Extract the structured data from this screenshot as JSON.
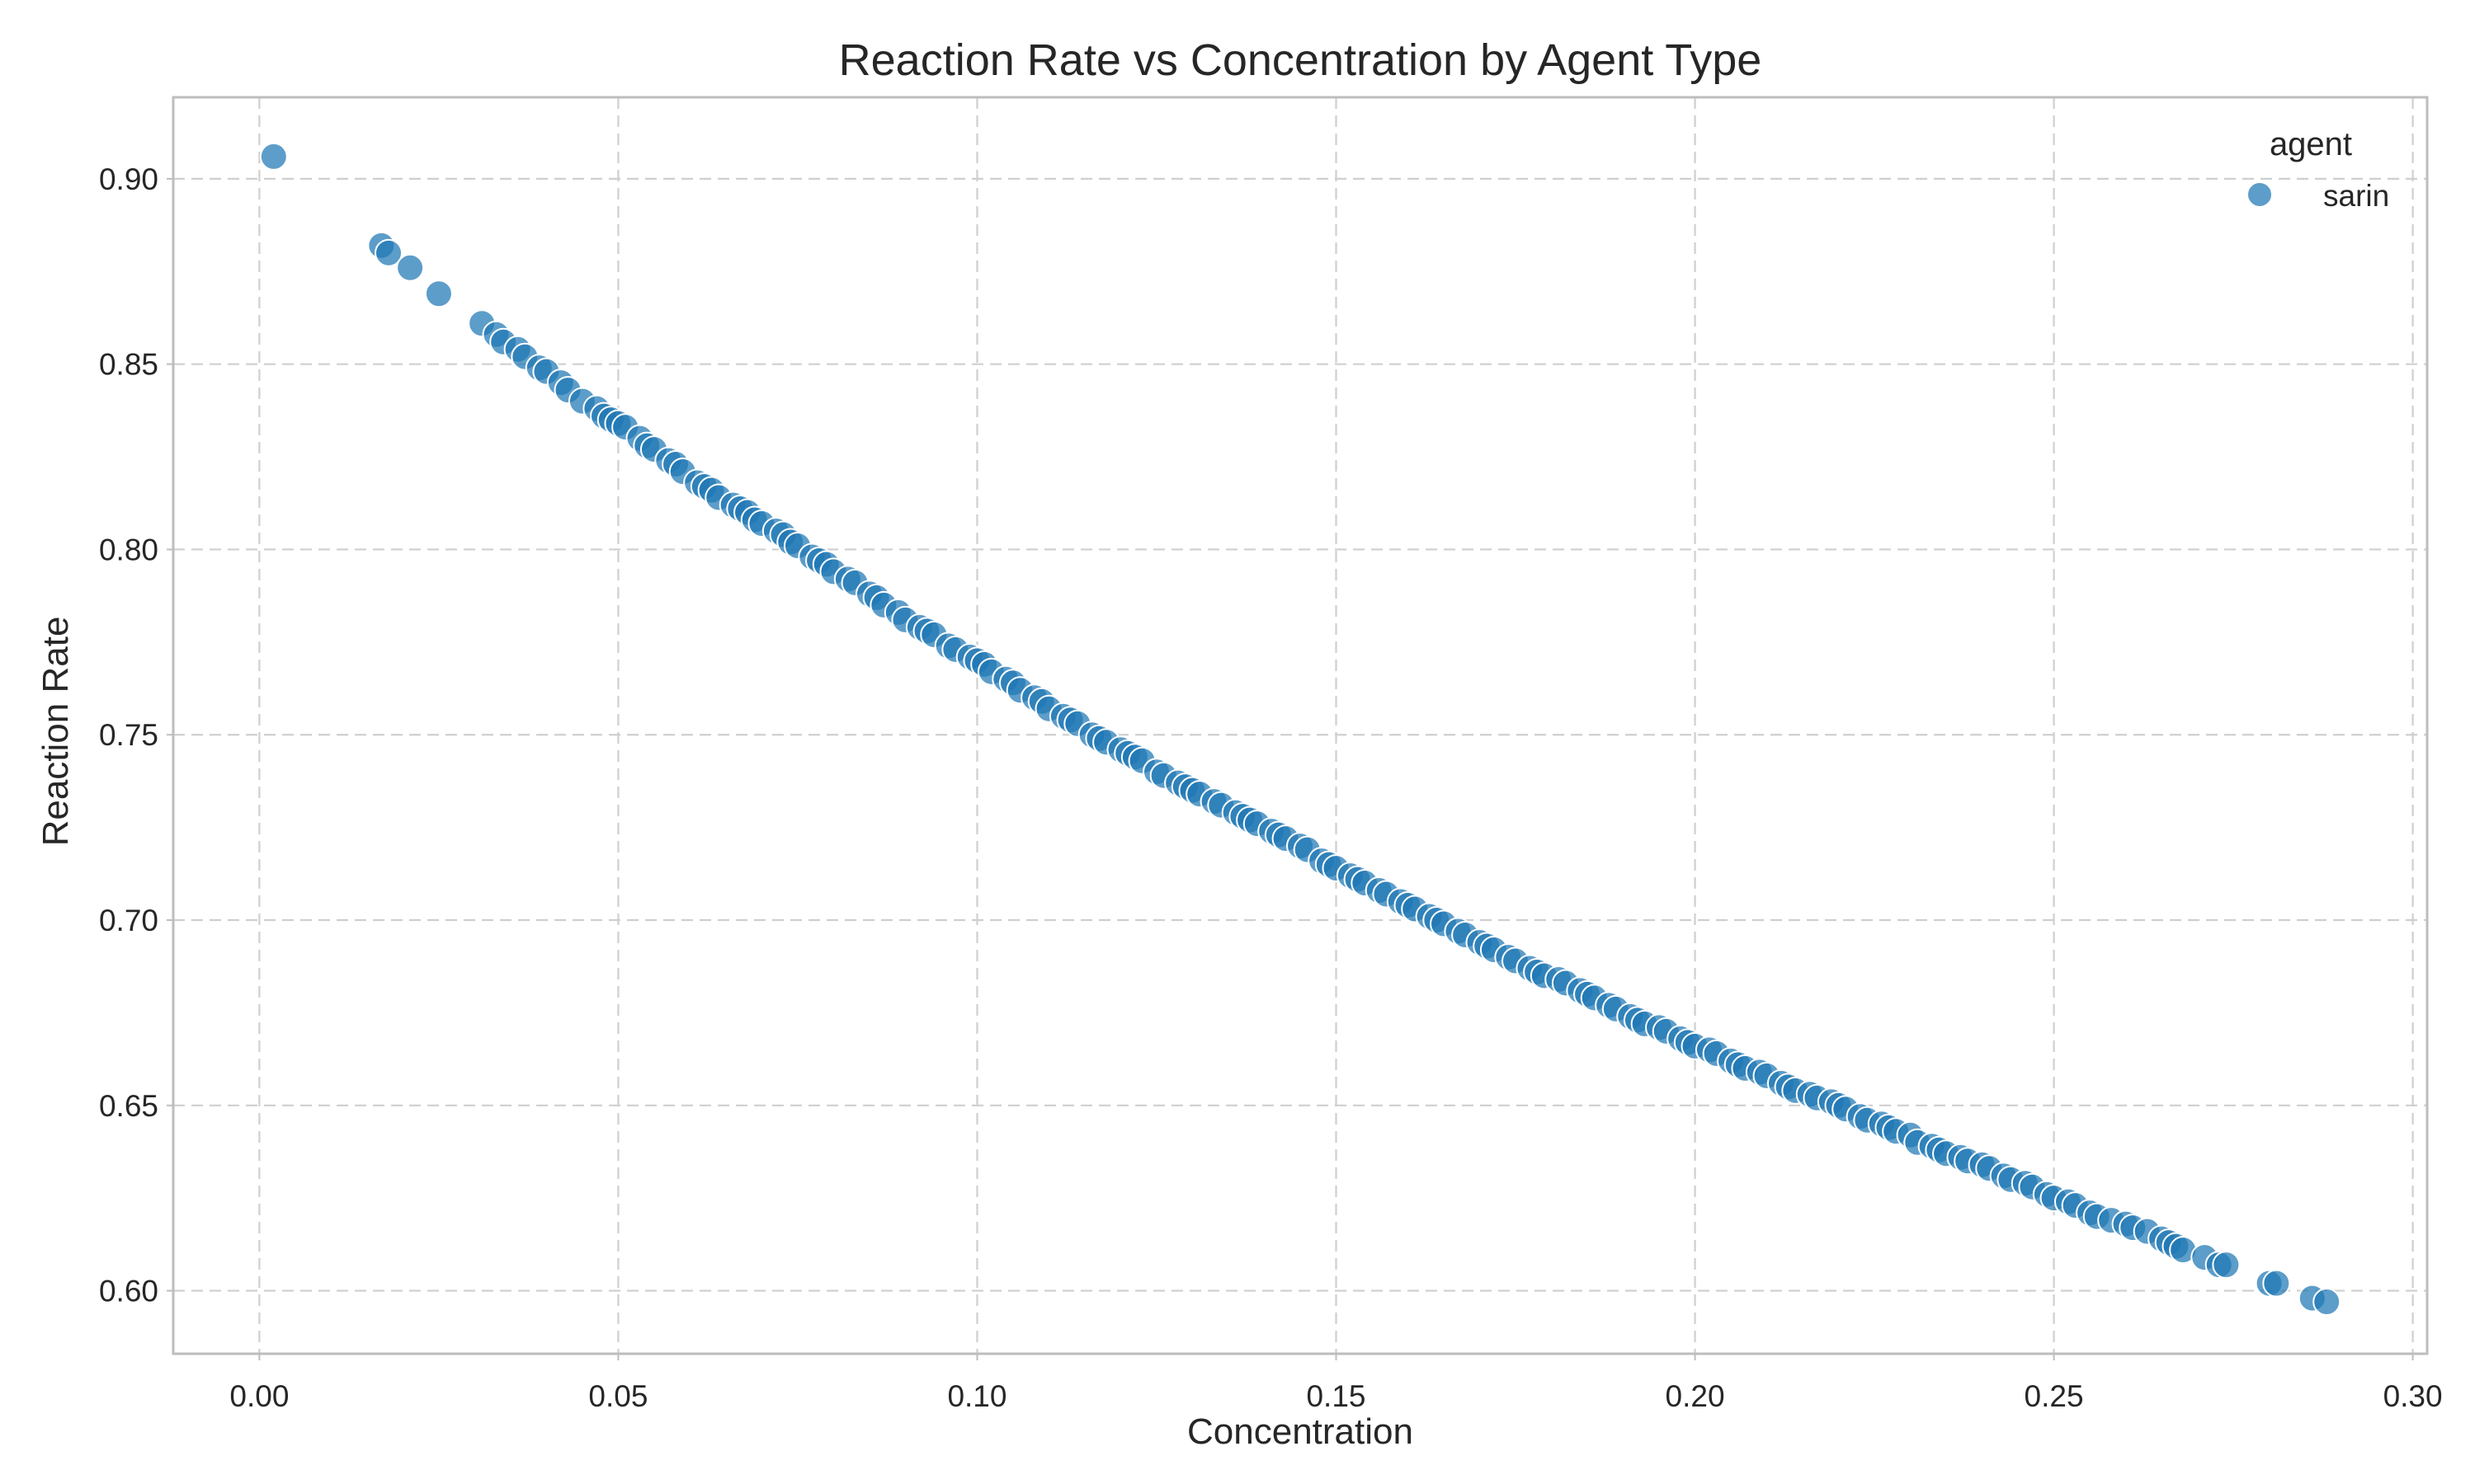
{
  "chart_data": {
    "type": "scatter",
    "title": "Reaction Rate vs Concentration by Agent Type",
    "xlabel": "Concentration",
    "ylabel": "Reaction Rate",
    "xlim": [
      -0.012,
      0.302
    ],
    "ylim": [
      0.583,
      0.922
    ],
    "xticks": [
      0.0,
      0.05,
      0.1,
      0.15,
      0.2,
      0.25,
      0.3
    ],
    "xtick_labels": [
      "0.00",
      "0.05",
      "0.10",
      "0.15",
      "0.20",
      "0.25",
      "0.30"
    ],
    "yticks": [
      0.6,
      0.65,
      0.7,
      0.75,
      0.8,
      0.85,
      0.9
    ],
    "ytick_labels": [
      "0.60",
      "0.65",
      "0.70",
      "0.75",
      "0.80",
      "0.85",
      "0.90"
    ],
    "grid": true,
    "legend": {
      "title": "agent",
      "placement": "top-right"
    },
    "series": [
      {
        "name": "sarin",
        "color": "#1f77b4",
        "points": [
          [
            0.002,
            0.906
          ],
          [
            0.017,
            0.882
          ],
          [
            0.018,
            0.88
          ],
          [
            0.021,
            0.876
          ],
          [
            0.025,
            0.869
          ],
          [
            0.031,
            0.861
          ],
          [
            0.033,
            0.858
          ],
          [
            0.034,
            0.856
          ],
          [
            0.036,
            0.854
          ],
          [
            0.037,
            0.852
          ],
          [
            0.039,
            0.849
          ],
          [
            0.04,
            0.848
          ],
          [
            0.042,
            0.845
          ],
          [
            0.043,
            0.843
          ],
          [
            0.045,
            0.84
          ],
          [
            0.047,
            0.838
          ],
          [
            0.048,
            0.836
          ],
          [
            0.049,
            0.835
          ],
          [
            0.05,
            0.834
          ],
          [
            0.051,
            0.833
          ],
          [
            0.053,
            0.83
          ],
          [
            0.054,
            0.828
          ],
          [
            0.055,
            0.827
          ],
          [
            0.057,
            0.824
          ],
          [
            0.058,
            0.823
          ],
          [
            0.059,
            0.821
          ],
          [
            0.061,
            0.818
          ],
          [
            0.062,
            0.817
          ],
          [
            0.063,
            0.816
          ],
          [
            0.064,
            0.814
          ],
          [
            0.066,
            0.812
          ],
          [
            0.067,
            0.811
          ],
          [
            0.068,
            0.81
          ],
          [
            0.069,
            0.808
          ],
          [
            0.07,
            0.807
          ],
          [
            0.072,
            0.805
          ],
          [
            0.073,
            0.804
          ],
          [
            0.074,
            0.802
          ],
          [
            0.075,
            0.801
          ],
          [
            0.077,
            0.798
          ],
          [
            0.078,
            0.797
          ],
          [
            0.079,
            0.796
          ],
          [
            0.08,
            0.794
          ],
          [
            0.082,
            0.792
          ],
          [
            0.083,
            0.791
          ],
          [
            0.085,
            0.788
          ],
          [
            0.086,
            0.787
          ],
          [
            0.087,
            0.785
          ],
          [
            0.089,
            0.783
          ],
          [
            0.09,
            0.781
          ],
          [
            0.092,
            0.779
          ],
          [
            0.093,
            0.778
          ],
          [
            0.094,
            0.777
          ],
          [
            0.096,
            0.774
          ],
          [
            0.097,
            0.773
          ],
          [
            0.099,
            0.771
          ],
          [
            0.1,
            0.77
          ],
          [
            0.101,
            0.769
          ],
          [
            0.102,
            0.767
          ],
          [
            0.104,
            0.765
          ],
          [
            0.105,
            0.764
          ],
          [
            0.106,
            0.762
          ],
          [
            0.108,
            0.76
          ],
          [
            0.109,
            0.759
          ],
          [
            0.11,
            0.757
          ],
          [
            0.112,
            0.755
          ],
          [
            0.113,
            0.754
          ],
          [
            0.114,
            0.753
          ],
          [
            0.116,
            0.75
          ],
          [
            0.117,
            0.749
          ],
          [
            0.118,
            0.748
          ],
          [
            0.12,
            0.746
          ],
          [
            0.121,
            0.745
          ],
          [
            0.122,
            0.744
          ],
          [
            0.123,
            0.743
          ],
          [
            0.125,
            0.74
          ],
          [
            0.126,
            0.739
          ],
          [
            0.128,
            0.737
          ],
          [
            0.129,
            0.736
          ],
          [
            0.13,
            0.735
          ],
          [
            0.131,
            0.734
          ],
          [
            0.133,
            0.732
          ],
          [
            0.134,
            0.731
          ],
          [
            0.136,
            0.729
          ],
          [
            0.137,
            0.728
          ],
          [
            0.138,
            0.727
          ],
          [
            0.139,
            0.726
          ],
          [
            0.141,
            0.724
          ],
          [
            0.142,
            0.723
          ],
          [
            0.143,
            0.722
          ],
          [
            0.145,
            0.72
          ],
          [
            0.146,
            0.719
          ],
          [
            0.148,
            0.716
          ],
          [
            0.149,
            0.715
          ],
          [
            0.15,
            0.714
          ],
          [
            0.152,
            0.712
          ],
          [
            0.153,
            0.711
          ],
          [
            0.154,
            0.71
          ],
          [
            0.156,
            0.708
          ],
          [
            0.157,
            0.707
          ],
          [
            0.159,
            0.705
          ],
          [
            0.16,
            0.704
          ],
          [
            0.161,
            0.703
          ],
          [
            0.163,
            0.701
          ],
          [
            0.164,
            0.7
          ],
          [
            0.165,
            0.699
          ],
          [
            0.167,
            0.697
          ],
          [
            0.168,
            0.696
          ],
          [
            0.17,
            0.694
          ],
          [
            0.171,
            0.693
          ],
          [
            0.172,
            0.692
          ],
          [
            0.174,
            0.69
          ],
          [
            0.175,
            0.689
          ],
          [
            0.177,
            0.687
          ],
          [
            0.178,
            0.686
          ],
          [
            0.179,
            0.685
          ],
          [
            0.181,
            0.684
          ],
          [
            0.182,
            0.683
          ],
          [
            0.184,
            0.681
          ],
          [
            0.185,
            0.68
          ],
          [
            0.186,
            0.679
          ],
          [
            0.188,
            0.677
          ],
          [
            0.189,
            0.676
          ],
          [
            0.191,
            0.674
          ],
          [
            0.192,
            0.673
          ],
          [
            0.193,
            0.672
          ],
          [
            0.195,
            0.671
          ],
          [
            0.196,
            0.67
          ],
          [
            0.198,
            0.668
          ],
          [
            0.199,
            0.667
          ],
          [
            0.2,
            0.666
          ],
          [
            0.202,
            0.665
          ],
          [
            0.203,
            0.664
          ],
          [
            0.205,
            0.662
          ],
          [
            0.206,
            0.661
          ],
          [
            0.207,
            0.66
          ],
          [
            0.209,
            0.659
          ],
          [
            0.21,
            0.658
          ],
          [
            0.212,
            0.656
          ],
          [
            0.213,
            0.655
          ],
          [
            0.214,
            0.654
          ],
          [
            0.216,
            0.653
          ],
          [
            0.217,
            0.652
          ],
          [
            0.219,
            0.651
          ],
          [
            0.22,
            0.65
          ],
          [
            0.221,
            0.649
          ],
          [
            0.223,
            0.647
          ],
          [
            0.224,
            0.646
          ],
          [
            0.226,
            0.645
          ],
          [
            0.227,
            0.644
          ],
          [
            0.228,
            0.643
          ],
          [
            0.23,
            0.642
          ],
          [
            0.231,
            0.64
          ],
          [
            0.233,
            0.639
          ],
          [
            0.234,
            0.638
          ],
          [
            0.235,
            0.637
          ],
          [
            0.237,
            0.636
          ],
          [
            0.238,
            0.635
          ],
          [
            0.24,
            0.634
          ],
          [
            0.241,
            0.633
          ],
          [
            0.243,
            0.631
          ],
          [
            0.244,
            0.63
          ],
          [
            0.246,
            0.629
          ],
          [
            0.247,
            0.628
          ],
          [
            0.249,
            0.626
          ],
          [
            0.25,
            0.625
          ],
          [
            0.252,
            0.624
          ],
          [
            0.253,
            0.623
          ],
          [
            0.255,
            0.621
          ],
          [
            0.256,
            0.62
          ],
          [
            0.258,
            0.619
          ],
          [
            0.26,
            0.618
          ],
          [
            0.261,
            0.617
          ],
          [
            0.263,
            0.616
          ],
          [
            0.265,
            0.614
          ],
          [
            0.266,
            0.613
          ],
          [
            0.267,
            0.612
          ],
          [
            0.268,
            0.611
          ],
          [
            0.271,
            0.609
          ],
          [
            0.273,
            0.607
          ],
          [
            0.274,
            0.607
          ],
          [
            0.28,
            0.602
          ],
          [
            0.281,
            0.602
          ],
          [
            0.286,
            0.598
          ],
          [
            0.288,
            0.597
          ]
        ]
      }
    ]
  }
}
